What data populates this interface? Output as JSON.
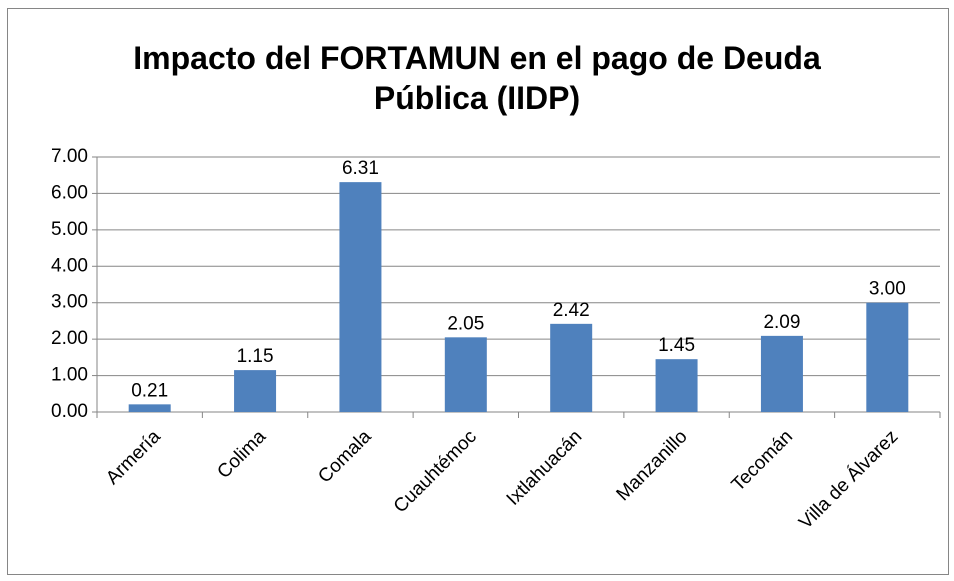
{
  "chart_data": {
    "type": "bar",
    "title": "Impacto del FORTAMUN en el pago de Deuda Pública (IIDP)",
    "categories": [
      "Armería",
      "Colima",
      "Comala",
      "Cuauhtémoc",
      "Ixtlahuacán",
      "Manzanillo",
      "Tecomán",
      "Villa de Álvarez"
    ],
    "values": [
      0.21,
      1.15,
      6.31,
      2.05,
      2.42,
      1.45,
      2.09,
      3.0
    ],
    "value_labels": [
      "0.21",
      "1.15",
      "6.31",
      "2.05",
      "2.42",
      "1.45",
      "2.09",
      "3.00"
    ],
    "color": "#4f81bd",
    "ylim": [
      0,
      7
    ],
    "yticks": [
      {
        "value": 0,
        "label": "0.00"
      },
      {
        "value": 1,
        "label": "1.00"
      },
      {
        "value": 2,
        "label": "2.00"
      },
      {
        "value": 3,
        "label": "3.00"
      },
      {
        "value": 4,
        "label": "4.00"
      },
      {
        "value": 5,
        "label": "5.00"
      },
      {
        "value": 6,
        "label": "6.00"
      },
      {
        "value": 7,
        "label": "7.00"
      }
    ],
    "grid": true
  }
}
